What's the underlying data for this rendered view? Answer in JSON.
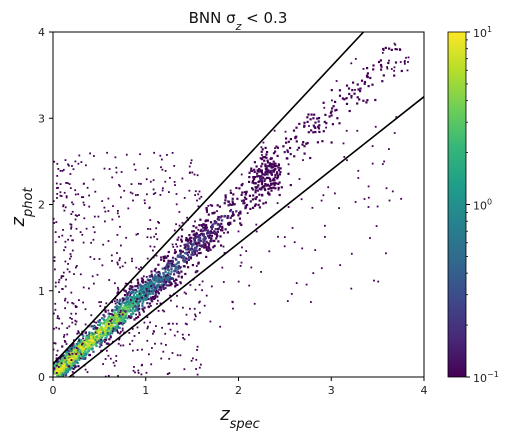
{
  "chart_data": {
    "type": "heatmap",
    "title_base": "BNN σ",
    "title_sub": "z",
    "title_tail": " < 0.3",
    "xlabel_main": "z",
    "xlabel_sub": "spec",
    "ylabel_main": "z",
    "ylabel_sub": "phot",
    "xlim": [
      0,
      4
    ],
    "ylim": [
      0,
      4
    ],
    "x_ticks": [
      0,
      1,
      2,
      3,
      4
    ],
    "y_ticks": [
      0,
      1,
      2,
      3,
      4
    ],
    "grid": false,
    "colorbar": {
      "scale": "log",
      "colormap": "viridis",
      "min": 0.1,
      "max": 10,
      "ticks": [
        {
          "value": 10,
          "base": "10",
          "exp": "1"
        },
        {
          "value": 1,
          "base": "10",
          "exp": "0"
        },
        {
          "value": 0.1,
          "base": "10",
          "exp": "−1"
        }
      ]
    },
    "boundary_lines": [
      {
        "slope": 1.15,
        "intercept": 0.15
      },
      {
        "slope": 0.85,
        "intercept": -0.15
      }
    ],
    "density_ridge": [
      {
        "x": 0.05,
        "y": 0.07,
        "density": 10
      },
      {
        "x": 0.3,
        "y": 0.32,
        "density": 10
      },
      {
        "x": 0.55,
        "y": 0.55,
        "density": 9
      },
      {
        "x": 0.75,
        "y": 0.75,
        "density": 5
      },
      {
        "x": 0.9,
        "y": 0.9,
        "density": 2
      },
      {
        "x": 1.05,
        "y": 1.05,
        "density": 1
      },
      {
        "x": 1.25,
        "y": 1.2,
        "density": 0.6
      },
      {
        "x": 1.5,
        "y": 1.5,
        "density": 0.3
      },
      {
        "x": 1.7,
        "y": 1.7,
        "density": 0.2
      },
      {
        "x": 2.25,
        "y": 2.25,
        "density": 0.15
      },
      {
        "x": 2.35,
        "y": 2.45,
        "density": 0.15
      },
      {
        "x": 3.7,
        "y": 3.75,
        "density": 0.1
      }
    ]
  },
  "colors": {
    "viridis": [
      "#440154",
      "#482878",
      "#3e4989",
      "#31688e",
      "#26828e",
      "#1f9e89",
      "#35b779",
      "#6ece58",
      "#b5de2b",
      "#fde725"
    ],
    "lines": "#000000"
  }
}
